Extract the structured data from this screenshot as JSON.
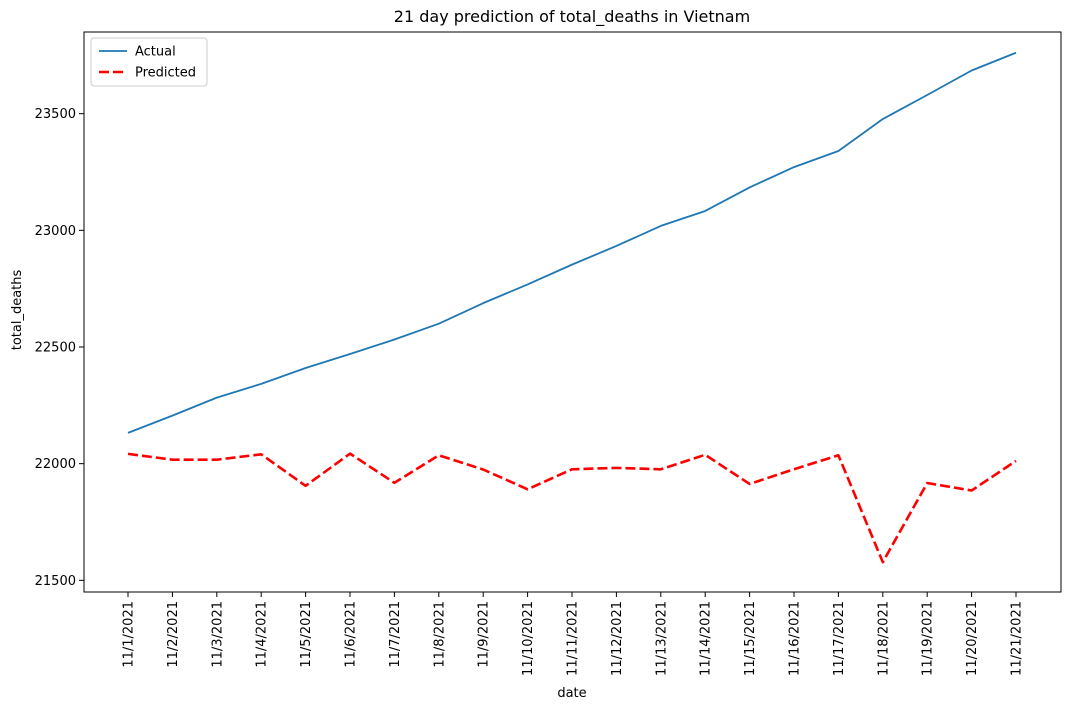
{
  "chart_data": {
    "type": "line",
    "title": "21 day prediction of total_deaths in Vietnam",
    "xlabel": "date",
    "ylabel": "total_deaths",
    "categories": [
      "11/1/2021",
      "11/2/2021",
      "11/3/2021",
      "11/4/2021",
      "11/5/2021",
      "11/6/2021",
      "11/7/2021",
      "11/8/2021",
      "11/9/2021",
      "11/10/2021",
      "11/11/2021",
      "11/12/2021",
      "11/13/2021",
      "11/14/2021",
      "11/15/2021",
      "11/16/2021",
      "11/17/2021",
      "11/18/2021",
      "11/19/2021",
      "11/20/2021",
      "11/21/2021"
    ],
    "yticks": [
      21500,
      22000,
      22500,
      23000,
      23500
    ],
    "ylim": [
      21450,
      23850
    ],
    "grid": false,
    "legend_position": "top-left",
    "series": [
      {
        "name": "Actual",
        "color": "#1f77b4",
        "style": "solid",
        "values": [
          22132,
          22206,
          22283,
          22342,
          22410,
          22470,
          22532,
          22600,
          22688,
          22768,
          22853,
          22933,
          23019,
          23083,
          23184,
          23271,
          23340,
          23477,
          23580,
          23685,
          23761
        ]
      },
      {
        "name": "Predicted",
        "color": "#ff0000",
        "style": "dashed",
        "values": [
          22042,
          22017,
          22017,
          22040,
          21905,
          22043,
          21918,
          22036,
          21975,
          21890,
          21976,
          21982,
          21976,
          22038,
          21913,
          21976,
          22036,
          21578,
          21917,
          21885,
          22012
        ]
      }
    ]
  }
}
